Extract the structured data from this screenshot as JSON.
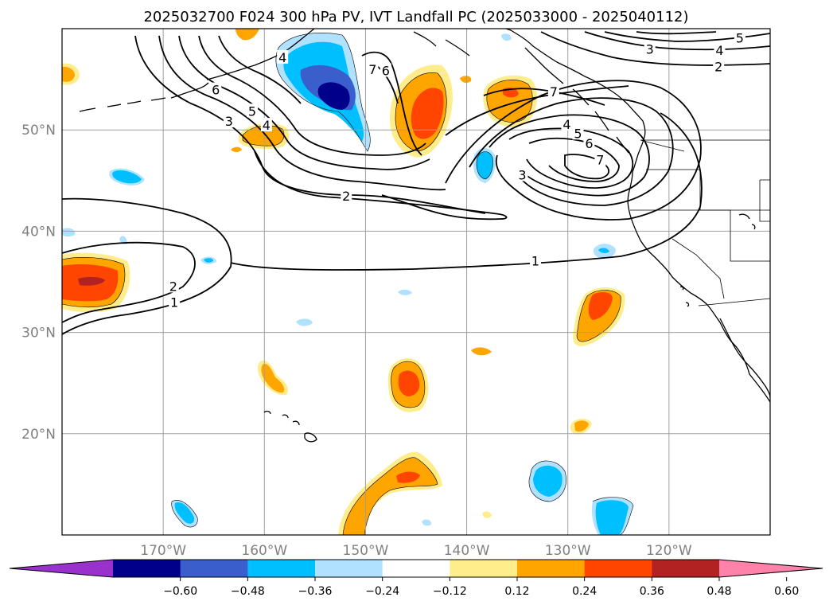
{
  "title": "2025032700 F024 300 hPa PV, IVT Landfall PC (2025033000 - 2025040112)",
  "map": {
    "lon_range": [
      180,
      110
    ],
    "lat_range": [
      10,
      60
    ],
    "lat_labels": [
      {
        "lat": 50,
        "text": "50°N"
      },
      {
        "lat": 40,
        "text": "40°N"
      },
      {
        "lat": 30,
        "text": "30°N"
      },
      {
        "lat": 20,
        "text": "20°N"
      }
    ],
    "lon_labels": [
      {
        "lon": 170,
        "text": "170°W"
      },
      {
        "lon": 160,
        "text": "160°W"
      },
      {
        "lon": 150,
        "text": "150°W"
      },
      {
        "lon": 140,
        "text": "140°W"
      },
      {
        "lon": 130,
        "text": "130°W"
      },
      {
        "lon": 120,
        "text": "120°W"
      }
    ],
    "gridlines": true
  },
  "colorbar": {
    "colors": [
      "#9932cc",
      "#00008b",
      "#3a5fcd",
      "#00bfff",
      "#b0e2ff",
      "#ffffff",
      "#ffec8b",
      "#ffa500",
      "#ff4500",
      "#b22222",
      "#ff82ab"
    ],
    "labels": [
      "−0.60",
      "−0.48",
      "−0.36",
      "−0.24",
      "−0.12",
      "0.12",
      "0.24",
      "0.36",
      "0.48",
      "0.60"
    ]
  },
  "contour_labels": [
    {
      "text": "1",
      "lon": 133.2,
      "lat": 37.0
    },
    {
      "text": "1",
      "lon": 168.9,
      "lat": 32.9
    },
    {
      "text": "2",
      "lon": 169.0,
      "lat": 34.5
    },
    {
      "text": "2",
      "lon": 151.9,
      "lat": 43.4
    },
    {
      "text": "2",
      "lon": 115.1,
      "lat": 56.2
    },
    {
      "text": "3",
      "lon": 163.5,
      "lat": 50.8
    },
    {
      "text": "3",
      "lon": 134.5,
      "lat": 45.5
    },
    {
      "text": "3",
      "lon": 121.9,
      "lat": 57.9
    },
    {
      "text": "4",
      "lon": 159.8,
      "lat": 50.4
    },
    {
      "text": "4",
      "lon": 130.1,
      "lat": 50.5
    },
    {
      "text": "4",
      "lon": 158.2,
      "lat": 57.1
    },
    {
      "text": "4",
      "lon": 115.0,
      "lat": 57.8
    },
    {
      "text": "5",
      "lon": 161.2,
      "lat": 51.8
    },
    {
      "text": "5",
      "lon": 129.0,
      "lat": 49.6
    },
    {
      "text": "5",
      "lon": 113.0,
      "lat": 59.0
    },
    {
      "text": "6",
      "lon": 164.8,
      "lat": 53.9
    },
    {
      "text": "6",
      "lon": 127.9,
      "lat": 48.6
    },
    {
      "text": "6",
      "lon": 148.0,
      "lat": 55.8
    },
    {
      "text": "7",
      "lon": 126.8,
      "lat": 47.0
    },
    {
      "text": "7",
      "lon": 149.3,
      "lat": 55.9
    },
    {
      "text": "7",
      "lon": 131.4,
      "lat": 53.7
    }
  ]
}
